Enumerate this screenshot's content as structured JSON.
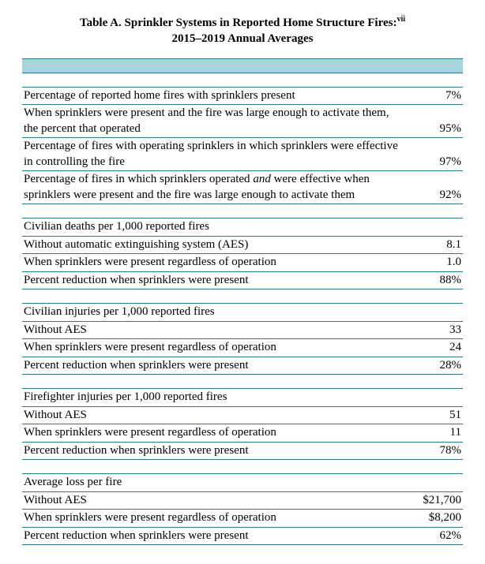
{
  "colors": {
    "header_band": "#a7d3dd",
    "rule": "#2a7a8c",
    "background": "#ffffff",
    "text": "#000000"
  },
  "table": {
    "title_line1": "Table A. Sprinkler Systems in Reported Home Structure Fires:",
    "footnote_ref": "vii",
    "title_line2": "2015–2019 Annual Averages",
    "sections": {
      "intro": [
        {
          "label": "Percentage of reported home fires with sprinklers present",
          "value": "7%"
        },
        {
          "label": "When sprinklers were present and the fire was large enough to activate them, the percent that operated",
          "value": "95%"
        },
        {
          "label": "Percentage of fires with operating sprinklers in which sprinklers were effective in controlling the fire",
          "value": "97%"
        },
        {
          "label_html": "Percentage of fires in which sprinklers operated <span class=\"ital\">and</span> were effective when sprinklers were present and  the fire was large enough to activate them",
          "value": "92%"
        }
      ],
      "civilian_deaths": {
        "header": "Civilian deaths per 1,000 reported fires",
        "rows": [
          {
            "label": "Without automatic extinguishing system (AES)",
            "value": "8.1"
          },
          {
            "label": "When sprinklers were present regardless of operation",
            "value": "1.0"
          },
          {
            "label": "Percent reduction when sprinklers were present",
            "value": "88%"
          }
        ]
      },
      "civilian_injuries": {
        "header": "Civilian injuries per 1,000 reported fires",
        "rows": [
          {
            "label": "Without AES",
            "value": "33"
          },
          {
            "label": "When sprinklers were present regardless of operation",
            "value": "24"
          },
          {
            "label": "Percent reduction when sprinklers were present",
            "value": "28%"
          }
        ]
      },
      "firefighter_injuries": {
        "header": "Firefighter injuries per 1,000 reported fires",
        "rows": [
          {
            "label": "Without AES",
            "value": "51"
          },
          {
            "label": "When sprinklers were present regardless of operation",
            "value": "11"
          },
          {
            "label": "Percent reduction when sprinklers were present",
            "value": "78%"
          }
        ]
      },
      "avg_loss": {
        "header": "Average loss per fire",
        "rows": [
          {
            "label": "Without AES",
            "value": "$21,700"
          },
          {
            "label": "When sprinklers were present regardless of operation",
            "value": "$8,200"
          },
          {
            "label": "Percent reduction when sprinklers were present",
            "value": "62%"
          }
        ]
      }
    }
  }
}
